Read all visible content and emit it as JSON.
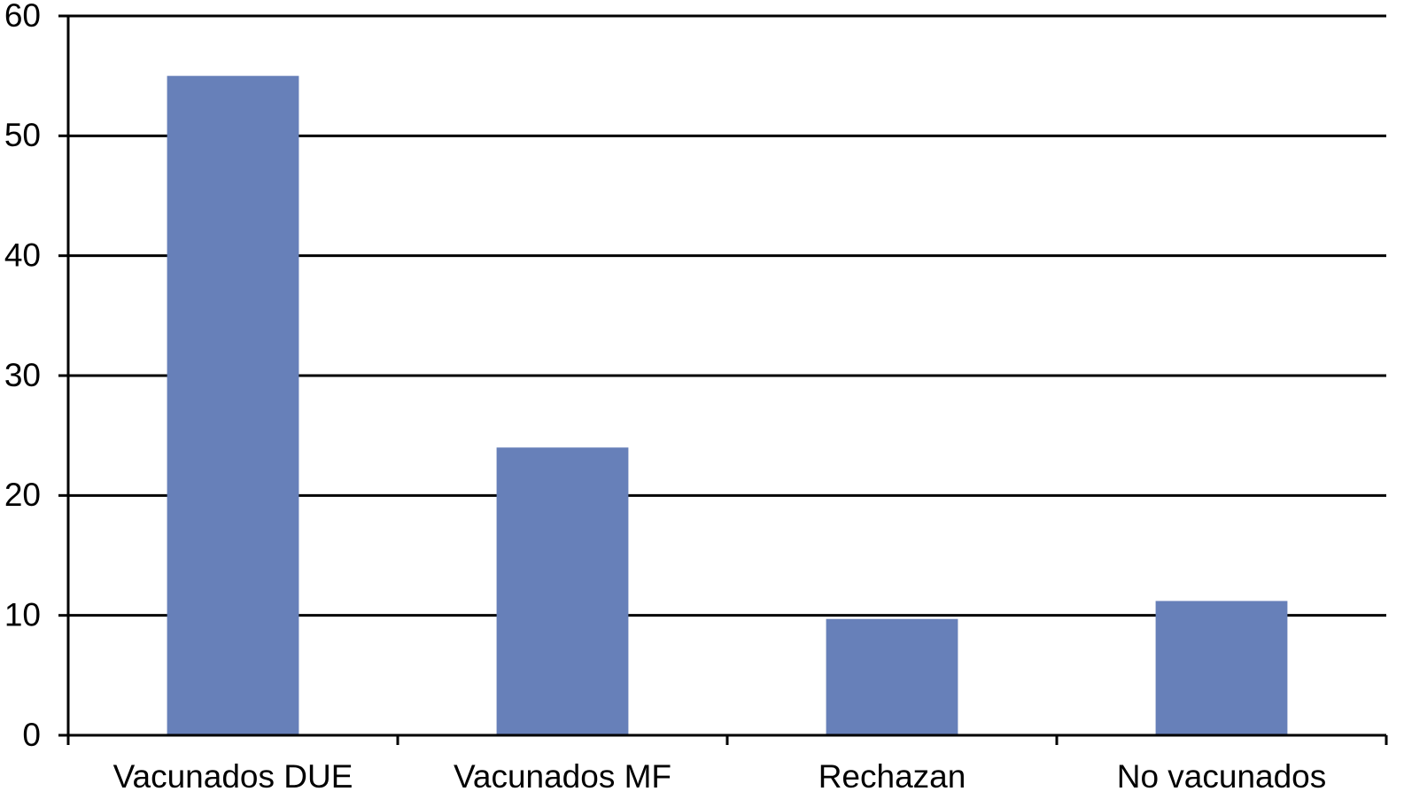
{
  "chart_data": {
    "type": "bar",
    "categories": [
      "Vacunados DUE",
      "Vacunados MF",
      "Rechazan",
      "No vacunados"
    ],
    "values": [
      55,
      24,
      9.7,
      11.2
    ],
    "color": "#6780b9",
    "ylim": [
      0,
      60
    ],
    "yticks": [
      0,
      10,
      20,
      30,
      40,
      50,
      60
    ],
    "grid": true
  }
}
